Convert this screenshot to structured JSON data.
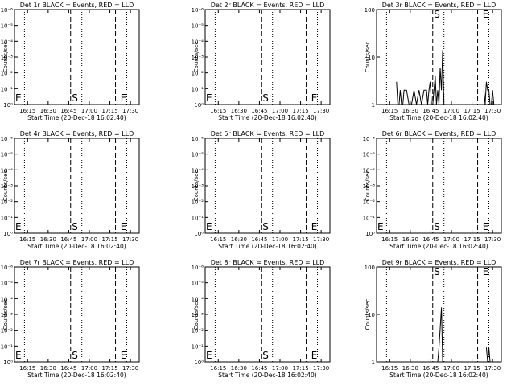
{
  "chart_data": [
    {
      "type": "line",
      "title": "Det 1r BLACK = Events, RED = LLD",
      "xlabel": "Start Time (20-Dec-18 16:02:40)",
      "ylabel": "Counts/sec",
      "yscale": "log",
      "yticks": [
        "10⁰",
        "10⁻¹",
        "10⁻²",
        "10⁻³",
        "10⁻⁴",
        "10⁻⁵",
        "10⁻⁶"
      ],
      "xticks": [
        "16:15",
        "16:30",
        "16:45",
        "17:00",
        "17:15",
        "17:30"
      ],
      "markers": {
        "start": "S",
        "end": "E"
      },
      "series": []
    },
    {
      "type": "line",
      "title": "Det 2r BLACK = Events, RED = LLD",
      "xlabel": "Start Time (20-Dec-18 16:02:40)",
      "ylabel": "Counts/sec",
      "yscale": "log",
      "yticks": [
        "10⁰",
        "10⁻¹",
        "10⁻²",
        "10⁻³",
        "10⁻⁴",
        "10⁻⁵",
        "10⁻⁶"
      ],
      "xticks": [
        "16:15",
        "16:30",
        "16:45",
        "17:00",
        "17:15",
        "17:30"
      ],
      "markers": {
        "start": "S",
        "end": "E"
      },
      "series": []
    },
    {
      "type": "line",
      "title": "Det 3r BLACK = Events, RED = LLD",
      "xlabel": "Start Time (20-Dec-18 16:02:40)",
      "ylabel": "Counts/sec",
      "yscale": "log",
      "yticks": [
        "1",
        "10",
        "100"
      ],
      "xticks": [
        "16:15",
        "16:30",
        "16:45",
        "17:00",
        "17:15",
        "17:30"
      ],
      "markers": {
        "start": "S",
        "end": "E"
      },
      "series": [
        {
          "x": [
            0.16,
            0.17,
            0.18,
            0.19,
            0.2,
            0.21,
            0.22,
            0.24,
            0.26,
            0.28,
            0.3,
            0.32,
            0.34,
            0.36,
            0.38,
            0.4,
            0.41,
            0.42,
            0.43,
            0.44,
            0.45,
            0.46,
            0.47,
            0.48,
            0.49,
            0.5,
            0.51,
            0.52,
            0.53,
            0.54
          ],
          "y": [
            3,
            1,
            1,
            2,
            1,
            1,
            2,
            2,
            1,
            1,
            2,
            1,
            2,
            1,
            2,
            2,
            1,
            2,
            3,
            1,
            1,
            2,
            4,
            1,
            2,
            1,
            6,
            2,
            14,
            1
          ]
        },
        {
          "x": [
            0.86,
            0.87,
            0.88,
            0.89,
            0.9,
            0.91,
            0.92,
            0.93,
            0.94,
            0.95
          ],
          "y": [
            2,
            1,
            3,
            2,
            2,
            1,
            1,
            2,
            1,
            1
          ]
        }
      ]
    },
    {
      "type": "line",
      "title": "Det 4r BLACK = Events, RED = LLD",
      "xlabel": "Start Time (20-Dec-18 16:02:40)",
      "ylabel": "Counts/sec",
      "yscale": "log",
      "yticks": [
        "10⁰",
        "10⁻¹",
        "10⁻²",
        "10⁻³",
        "10⁻⁴",
        "10⁻⁵",
        "10⁻⁶"
      ],
      "xticks": [
        "16:15",
        "16:30",
        "16:45",
        "17:00",
        "17:15",
        "17:30"
      ],
      "markers": {
        "start": "S",
        "end": "E"
      },
      "series": []
    },
    {
      "type": "line",
      "title": "Det 5r BLACK = Events, RED = LLD",
      "xlabel": "Start Time (20-Dec-18 16:02:40)",
      "ylabel": "Counts/sec",
      "yscale": "log",
      "yticks": [
        "10⁰",
        "10⁻¹",
        "10⁻²",
        "10⁻³",
        "10⁻⁴",
        "10⁻⁵",
        "10⁻⁶"
      ],
      "xticks": [
        "16:15",
        "16:30",
        "16:45",
        "17:00",
        "17:15",
        "17:30"
      ],
      "markers": {
        "start": "S",
        "end": "E"
      },
      "series": []
    },
    {
      "type": "line",
      "title": "Det 6r BLACK = Events, RED = LLD",
      "xlabel": "Start Time (20-Dec-18 16:02:40)",
      "ylabel": "Counts/sec",
      "yscale": "log",
      "yticks": [
        "10⁰",
        "10⁻¹",
        "10⁻²",
        "10⁻³",
        "10⁻⁴",
        "10⁻⁵",
        "10⁻⁶"
      ],
      "xticks": [
        "16:15",
        "16:30",
        "16:45",
        "17:00",
        "17:15",
        "17:30"
      ],
      "markers": {
        "start": "S",
        "end": "E"
      },
      "series": []
    },
    {
      "type": "line",
      "title": "Det 7r BLACK = Events, RED = LLD",
      "xlabel": "Start Time (20-Dec-18 16:02:40)",
      "ylabel": "Counts/sec",
      "yscale": "log",
      "yticks": [
        "10⁰",
        "10⁻¹",
        "10⁻²",
        "10⁻³",
        "10⁻⁴",
        "10⁻⁵",
        "10⁻⁶"
      ],
      "xticks": [
        "16:15",
        "16:30",
        "16:45",
        "17:00",
        "17:15",
        "17:30"
      ],
      "markers": {
        "start": "S",
        "end": "E"
      },
      "series": []
    },
    {
      "type": "line",
      "title": "Det 8r BLACK = Events, RED = LLD",
      "xlabel": "Start Time (20-Dec-18 16:02:40)",
      "ylabel": "Counts/sec",
      "yscale": "log",
      "yticks": [
        "10⁰",
        "10⁻¹",
        "10⁻²",
        "10⁻³",
        "10⁻⁴",
        "10⁻⁵",
        "10⁻⁶"
      ],
      "xticks": [
        "16:15",
        "16:30",
        "16:45",
        "17:00",
        "17:15",
        "17:30"
      ],
      "markers": {
        "start": "S",
        "end": "E"
      },
      "series": []
    },
    {
      "type": "line",
      "title": "Det 9r BLACK = Events, RED = LLD",
      "xlabel": "Start Time (20-Dec-18 16:02:40)",
      "ylabel": "Counts/sec",
      "yscale": "log",
      "yticks": [
        "1",
        "10",
        "100"
      ],
      "xticks": [
        "16:15",
        "16:30",
        "16:45",
        "17:00",
        "17:15",
        "17:30"
      ],
      "markers": {
        "start": "S",
        "end": "E"
      },
      "series": [
        {
          "x": [
            0.49,
            0.5,
            0.51,
            0.52,
            0.53
          ],
          "y": [
            1,
            2,
            5,
            14,
            1
          ]
        },
        {
          "x": [
            0.88,
            0.89,
            0.9,
            0.91,
            0.92
          ],
          "y": [
            2,
            1,
            2,
            1,
            1
          ]
        }
      ]
    }
  ]
}
